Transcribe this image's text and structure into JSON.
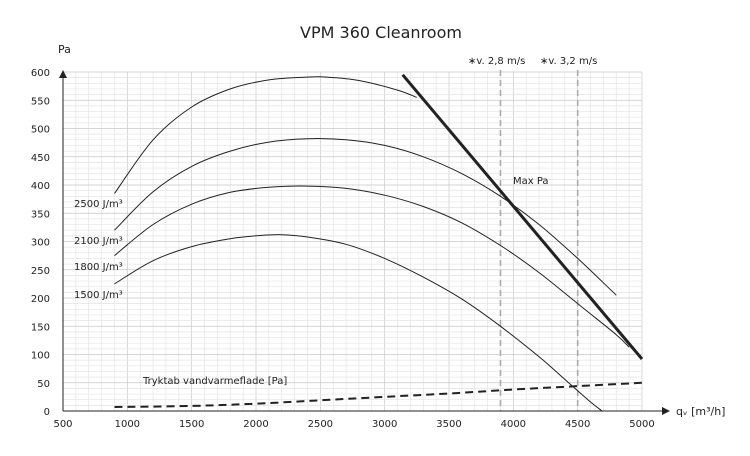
{
  "chart_data": {
    "type": "line",
    "title": "VPM 360 Cleanroom",
    "xlabel": "qᵥ [m³/h]",
    "ylabel": "Pa",
    "xlim": [
      500,
      5000
    ],
    "ylim": [
      0,
      600
    ],
    "grid": true,
    "x_ticks": [
      "500",
      "1000",
      "1500",
      "2000",
      "2500",
      "3000",
      "3500",
      "4000",
      "4500",
      "5000"
    ],
    "y_ticks": [
      "0",
      "50",
      "100",
      "150",
      "200",
      "250",
      "300",
      "350",
      "400",
      "450",
      "500",
      "550",
      "600"
    ],
    "series": [
      {
        "name": "2500 J/m³",
        "x": [
          900,
          1200,
          1500,
          1800,
          2100,
          2400,
          2550,
          2800,
          3100,
          3250
        ],
        "y": [
          385,
          480,
          538,
          570,
          586,
          591,
          591,
          585,
          568,
          555
        ]
      },
      {
        "name": "2100 J/m³",
        "x": [
          900,
          1200,
          1500,
          1800,
          2100,
          2400,
          2700,
          3000,
          3300,
          3600,
          3900,
          4200,
          4500,
          4800
        ],
        "y": [
          320,
          388,
          433,
          460,
          476,
          482,
          480,
          470,
          450,
          420,
          380,
          330,
          270,
          205
        ]
      },
      {
        "name": "1800 J/m³",
        "x": [
          900,
          1200,
          1500,
          1800,
          2100,
          2400,
          2700,
          3000,
          3300,
          3600,
          3900,
          4200,
          4500,
          4800,
          4900
        ],
        "y": [
          275,
          330,
          366,
          387,
          396,
          398,
          394,
          382,
          362,
          333,
          293,
          245,
          190,
          135,
          113
        ]
      },
      {
        "name": "1500 J/m³",
        "x": [
          900,
          1200,
          1500,
          1800,
          2000,
          2200,
          2400,
          2700,
          3000,
          3300,
          3600,
          3900,
          4200,
          4400,
          4600,
          4690
        ],
        "y": [
          225,
          266,
          291,
          305,
          310,
          312,
          308,
          295,
          270,
          237,
          198,
          150,
          96,
          56,
          16,
          0
        ]
      },
      {
        "name": "Max Pa",
        "x": [
          3140,
          5000
        ],
        "y": [
          595,
          92
        ]
      },
      {
        "name": "Tryktab vandvarmeflade [Pa]",
        "x": [
          900,
          1500,
          2000,
          2500,
          3000,
          3500,
          4000,
          4500,
          5000
        ],
        "y": [
          7,
          9,
          13,
          19,
          25,
          31,
          38,
          44,
          50
        ]
      }
    ],
    "reference_lines": [
      {
        "label": "∗v. 2,8 m/s",
        "x": 3900
      },
      {
        "label": "∗v. 3,2 m/s",
        "x": 4500
      }
    ]
  }
}
